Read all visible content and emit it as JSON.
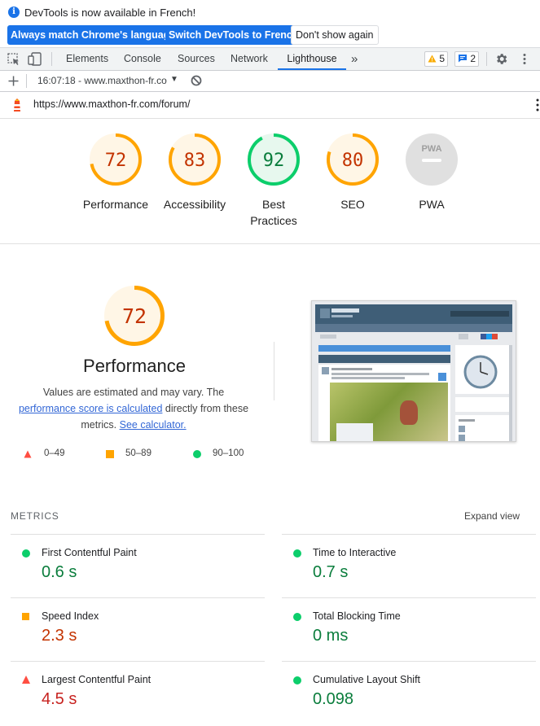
{
  "infobar": {
    "message": "DevTools is now available in French!",
    "btn_match": "Always match Chrome's language",
    "btn_switch": "Switch DevTools to French",
    "btn_dismiss": "Don't show again"
  },
  "tabs": [
    "Elements",
    "Console",
    "Sources",
    "Network",
    "Lighthouse"
  ],
  "active_tab": "Lighthouse",
  "more_tabs": "»",
  "badges": {
    "warnings": "5",
    "messages": "2"
  },
  "report": {
    "time_url": "16:07:18 - www.maxthon-fr.co",
    "dropdown": "▼"
  },
  "url": "https://www.maxthon-fr.com/forum/",
  "summary": [
    {
      "label": "Performance",
      "score": "72",
      "value": 0.72,
      "level": "average"
    },
    {
      "label": "Accessibility",
      "score": "83",
      "value": 0.83,
      "level": "average"
    },
    {
      "label_line1": "Best",
      "label_line2": "Practices",
      "score": "92",
      "value": 0.92,
      "level": "pass"
    },
    {
      "label": "SEO",
      "score": "80",
      "value": 0.8,
      "level": "average"
    },
    {
      "label": "PWA",
      "badge": "PWA",
      "level": "na"
    }
  ],
  "perf": {
    "score": "72",
    "value": 0.72,
    "title": "Performance",
    "desc_pre": "Values are estimated and may vary. The ",
    "desc_link1": "performance score is calculated",
    "desc_mid": " directly from these metrics. ",
    "desc_link2": "See calculator.",
    "legend": {
      "fail": "0–49",
      "average": "50–89",
      "pass": "90–100"
    }
  },
  "metrics": {
    "header": "METRICS",
    "expand": "Expand view",
    "items": [
      {
        "label": "First Contentful Paint",
        "value": "0.6 s",
        "level": "pass"
      },
      {
        "label": "Time to Interactive",
        "value": "0.7 s",
        "level": "pass"
      },
      {
        "label": "Speed Index",
        "value": "2.3 s",
        "level": "average"
      },
      {
        "label": "Total Blocking Time",
        "value": "0 ms",
        "level": "pass"
      },
      {
        "label": "Largest Contentful Paint",
        "value": "4.5 s",
        "level": "fail"
      },
      {
        "label": "Cumulative Layout Shift",
        "value": "0.098",
        "level": "pass"
      }
    ]
  },
  "colors": {
    "pass": "#0cce6b",
    "pass_text": "#0a7d3c",
    "average": "#ffa400",
    "average_text": "#c33300",
    "fail": "#ff4e42",
    "fail_text": "#c7221f",
    "blue": "#1a73e8"
  }
}
